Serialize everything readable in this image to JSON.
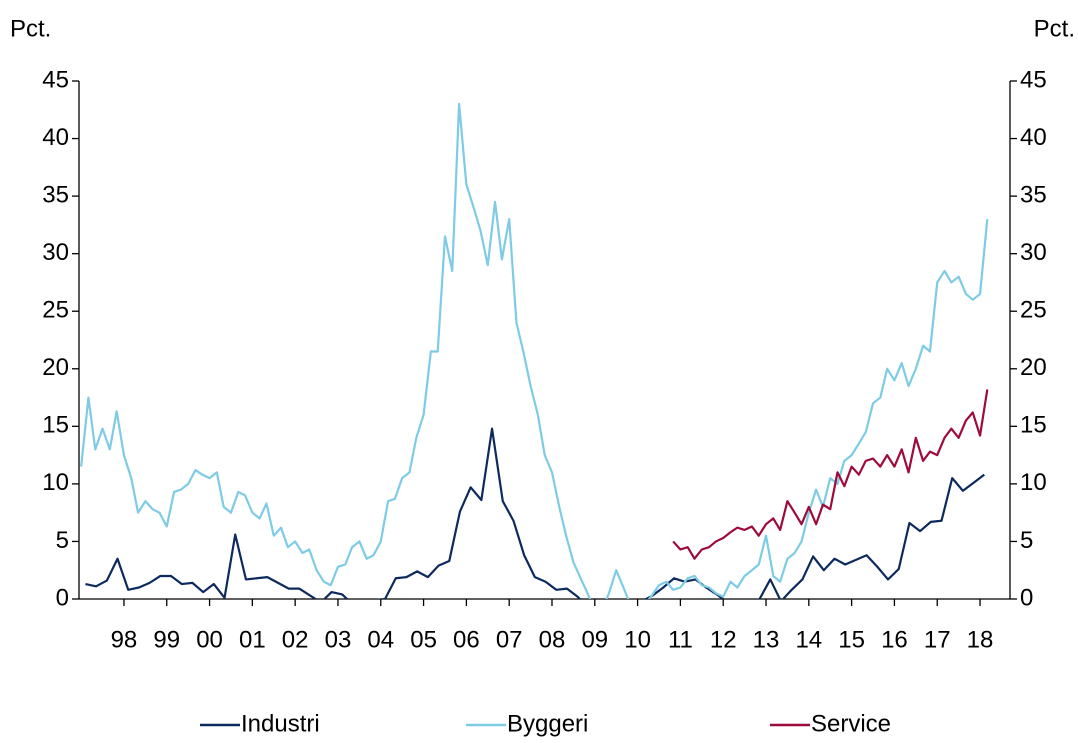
{
  "chart_data": {
    "type": "line",
    "y_label": "Pct.",
    "y2_label": "Pct.",
    "xlim": [
      1997.45,
      2019.2
    ],
    "xticks": [
      {
        "value": 1998.5,
        "label": "98"
      },
      {
        "value": 1999.5,
        "label": "99"
      },
      {
        "value": 2000.5,
        "label": "00"
      },
      {
        "value": 2001.5,
        "label": "01"
      },
      {
        "value": 2002.5,
        "label": "02"
      },
      {
        "value": 2003.5,
        "label": "03"
      },
      {
        "value": 2004.5,
        "label": "04"
      },
      {
        "value": 2005.5,
        "label": "05"
      },
      {
        "value": 2006.5,
        "label": "06"
      },
      {
        "value": 2007.5,
        "label": "07"
      },
      {
        "value": 2008.5,
        "label": "08"
      },
      {
        "value": 2009.5,
        "label": "09"
      },
      {
        "value": 2010.5,
        "label": "10"
      },
      {
        "value": 2011.5,
        "label": "11"
      },
      {
        "value": 2012.5,
        "label": "12"
      },
      {
        "value": 2013.5,
        "label": "13"
      },
      {
        "value": 2014.5,
        "label": "14"
      },
      {
        "value": 2015.5,
        "label": "15"
      },
      {
        "value": 2016.5,
        "label": "16"
      },
      {
        "value": 2017.5,
        "label": "17"
      },
      {
        "value": 2018.5,
        "label": "18"
      }
    ],
    "ylim": [
      0,
      45
    ],
    "yticks": [
      0,
      5,
      10,
      15,
      20,
      25,
      30,
      35,
      40,
      45
    ],
    "y2lim": [
      0,
      45
    ],
    "y2ticks": [
      0,
      5,
      10,
      15,
      20,
      25,
      30,
      35,
      40,
      45
    ],
    "grid": false,
    "legend": "bottom",
    "series": [
      {
        "name": "Industri",
        "color": "#0d2a5e",
        "x": [
          1997.6,
          1997.85,
          1998.1,
          1998.35,
          1998.6,
          1998.85,
          1999.1,
          1999.35,
          1999.6,
          1999.85,
          2000.1,
          2000.35,
          2000.6,
          2000.85,
          2001.1,
          2001.35,
          2001.6,
          2001.85,
          2002.1,
          2002.35,
          2002.6,
          2002.85,
          2003.1,
          2003.35,
          2003.6,
          2003.85,
          2004.1,
          2004.35,
          2004.6,
          2004.85,
          2005.1,
          2005.35,
          2005.6,
          2005.85,
          2006.1,
          2006.35,
          2006.6,
          2006.85,
          2007.1,
          2007.35,
          2007.6,
          2007.85,
          2008.1,
          2008.35,
          2008.6,
          2008.85,
          2009.1,
          2009.35,
          2009.6,
          2009.85,
          2010.1,
          2010.35,
          2010.6,
          2010.85,
          2011.1,
          2011.35,
          2011.6,
          2011.85,
          2012.1,
          2012.35,
          2012.6,
          2012.85,
          2013.1,
          2013.35,
          2013.6,
          2013.85,
          2014.1,
          2014.35,
          2014.6,
          2014.85,
          2015.1,
          2015.35,
          2015.6,
          2015.85,
          2016.1,
          2016.35,
          2016.6,
          2016.85,
          2017.1,
          2017.35,
          2017.6,
          2017.85,
          2018.1,
          2018.35,
          2018.6
        ],
        "values": [
          1.3,
          1.1,
          1.6,
          3.5,
          0.8,
          1.0,
          1.4,
          2.0,
          2.0,
          1.3,
          1.4,
          0.6,
          1.3,
          0.1,
          5.6,
          1.7,
          1.8,
          1.9,
          1.4,
          0.9,
          0.9,
          0.3,
          -0.3,
          0.6,
          0.4,
          -0.5,
          -0.5,
          -0.1,
          0.0,
          1.8,
          1.9,
          2.4,
          1.9,
          2.9,
          3.3,
          7.6,
          9.7,
          8.6,
          14.8,
          8.5,
          6.8,
          3.8,
          1.9,
          1.5,
          0.8,
          0.9,
          0.2,
          -0.8,
          -1.5,
          -1.5,
          -1.0,
          -0.5,
          -0.2,
          0.3,
          1.0,
          1.8,
          1.5,
          1.7,
          1.0,
          0.4,
          -0.3,
          -0.5,
          -0.3,
          0.0,
          1.7,
          -0.2,
          0.8,
          1.7,
          3.7,
          2.5,
          3.5,
          3.0,
          3.4,
          3.8,
          2.8,
          1.7,
          2.6,
          6.6,
          5.9,
          6.7,
          6.8,
          10.5,
          9.4,
          10.1,
          10.8
        ]
      },
      {
        "name": "Byggeri",
        "color": "#7ecbe6",
        "x": [
          1997.5,
          1997.67,
          1997.83,
          1998.0,
          1998.17,
          1998.33,
          1998.5,
          1998.67,
          1998.83,
          1999.0,
          1999.17,
          1999.33,
          1999.5,
          1999.67,
          1999.83,
          2000.0,
          2000.17,
          2000.33,
          2000.5,
          2000.67,
          2000.83,
          2001.0,
          2001.17,
          2001.33,
          2001.5,
          2001.67,
          2001.83,
          2002.0,
          2002.17,
          2002.33,
          2002.5,
          2002.67,
          2002.83,
          2003.0,
          2003.17,
          2003.33,
          2003.5,
          2003.67,
          2003.83,
          2004.0,
          2004.17,
          2004.33,
          2004.5,
          2004.67,
          2004.83,
          2005.0,
          2005.17,
          2005.33,
          2005.5,
          2005.67,
          2005.83,
          2006.0,
          2006.17,
          2006.33,
          2006.5,
          2006.67,
          2006.83,
          2007.0,
          2007.17,
          2007.33,
          2007.5,
          2007.67,
          2007.83,
          2008.0,
          2008.17,
          2008.33,
          2008.5,
          2008.67,
          2008.83,
          2009.0,
          2009.17,
          2009.33,
          2009.5,
          2009.67,
          2009.83,
          2010.0,
          2010.17,
          2010.33,
          2010.5,
          2010.67,
          2010.83,
          2011.0,
          2011.17,
          2011.33,
          2011.5,
          2011.67,
          2011.83,
          2012.0,
          2012.17,
          2012.33,
          2012.5,
          2012.67,
          2012.83,
          2013.0,
          2013.17,
          2013.33,
          2013.5,
          2013.67,
          2013.83,
          2014.0,
          2014.17,
          2014.33,
          2014.5,
          2014.67,
          2014.83,
          2015.0,
          2015.17,
          2015.33,
          2015.5,
          2015.67,
          2015.83,
          2016.0,
          2016.17,
          2016.33,
          2016.5,
          2016.67,
          2016.83,
          2017.0,
          2017.17,
          2017.33,
          2017.5,
          2017.67,
          2017.83,
          2018.0,
          2018.17,
          2018.33,
          2018.5,
          2018.67
        ],
        "values": [
          11.5,
          17.5,
          13,
          14.8,
          13,
          16.3,
          12.5,
          10.5,
          7.5,
          8.5,
          7.8,
          7.5,
          6.3,
          9.3,
          9.5,
          10,
          11.2,
          10.8,
          10.5,
          11.0,
          8.0,
          7.5,
          9.3,
          9.0,
          7.5,
          7.0,
          8.3,
          5.5,
          6.2,
          4.5,
          5.0,
          4.0,
          4.3,
          2.5,
          1.5,
          1.2,
          2.8,
          3.0,
          4.5,
          5.0,
          3.5,
          3.8,
          5.0,
          8.5,
          8.7,
          10.5,
          11.0,
          14,
          16,
          21.5,
          21.5,
          31.5,
          28.5,
          43,
          36,
          34,
          32,
          29,
          34.5,
          29.5,
          33,
          24,
          21.5,
          18.5,
          16,
          12.5,
          11,
          8,
          5.5,
          3.2,
          1.8,
          0.5,
          -1,
          -1,
          0.5,
          2.5,
          1.0,
          -0.5,
          -1,
          -0.5,
          0.3,
          1.2,
          1.5,
          0.8,
          1.0,
          1.8,
          2.0,
          1.2,
          1.0,
          0.5,
          0.2,
          1.5,
          1.0,
          2.0,
          2.5,
          3.0,
          5.5,
          2.0,
          1.5,
          3.5,
          4.0,
          5.0,
          7.5,
          9.5,
          8.0,
          10.5,
          10.0,
          12,
          12.5,
          13.5,
          14.5,
          17,
          17.5,
          20,
          19,
          20.5,
          18.5,
          20,
          22,
          21.5,
          27.5,
          28.5,
          27.5,
          28,
          26.5,
          26,
          26.5,
          33
        ]
      },
      {
        "name": "Service",
        "color": "#9e0a3a",
        "x": [
          2011.33,
          2011.5,
          2011.67,
          2011.83,
          2012.0,
          2012.17,
          2012.33,
          2012.5,
          2012.67,
          2012.83,
          2013.0,
          2013.17,
          2013.33,
          2013.5,
          2013.67,
          2013.83,
          2014.0,
          2014.17,
          2014.33,
          2014.5,
          2014.67,
          2014.83,
          2015.0,
          2015.17,
          2015.33,
          2015.5,
          2015.67,
          2015.83,
          2016.0,
          2016.17,
          2016.33,
          2016.5,
          2016.67,
          2016.83,
          2017.0,
          2017.17,
          2017.33,
          2017.5,
          2017.67,
          2017.83,
          2018.0,
          2018.17,
          2018.33,
          2018.5,
          2018.67
        ],
        "values": [
          5.0,
          4.3,
          4.5,
          3.5,
          4.3,
          4.5,
          5.0,
          5.3,
          5.8,
          6.2,
          6.0,
          6.3,
          5.5,
          6.5,
          7.0,
          6.0,
          8.5,
          7.5,
          6.5,
          8.0,
          6.5,
          8.2,
          7.8,
          11.0,
          9.8,
          11.5,
          10.8,
          12.0,
          12.2,
          11.5,
          12.5,
          11.5,
          13.0,
          11.0,
          14.0,
          12.0,
          12.8,
          12.5,
          14.0,
          14.8,
          14.0,
          15.5,
          16.2,
          14.2,
          18.2
        ]
      }
    ]
  }
}
